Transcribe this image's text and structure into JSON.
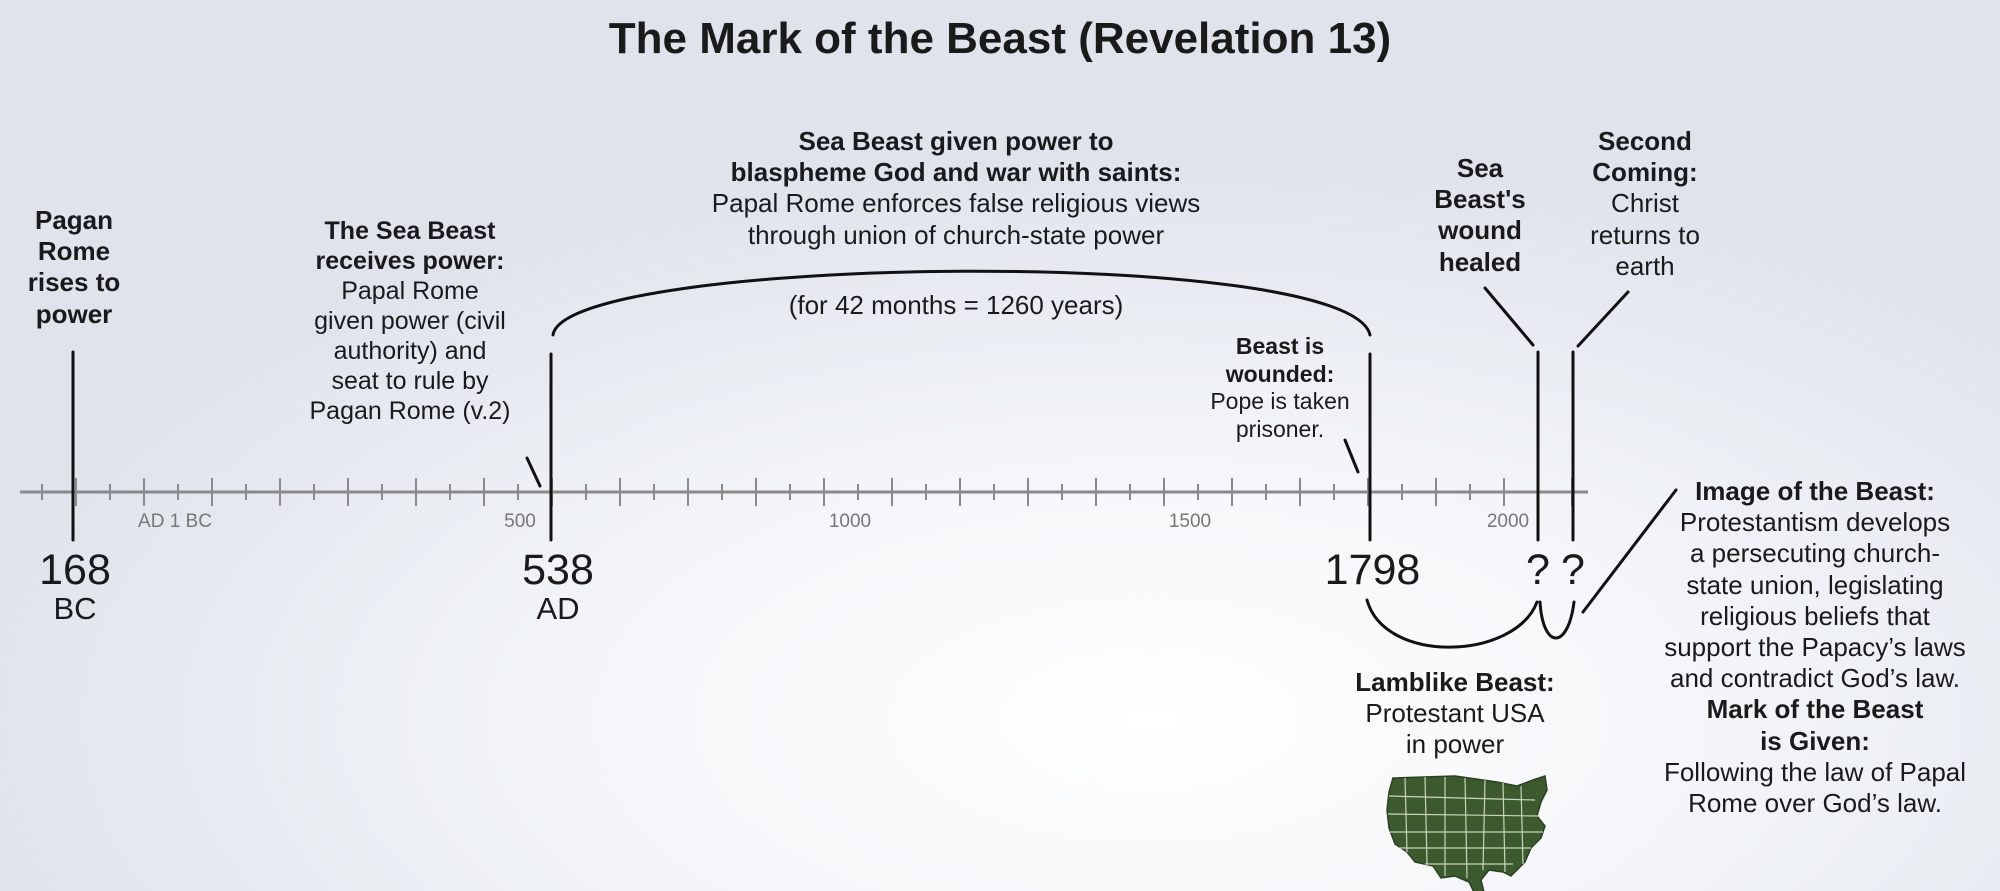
{
  "title": "The Mark of the Beast (Revelation 13)",
  "axis": {
    "tick_labels": [
      "AD 1 BC",
      "500",
      "1000",
      "1500",
      "2000"
    ]
  },
  "dates": {
    "bc168": {
      "year": "168",
      "era": "BC"
    },
    "ad538": {
      "year": "538",
      "era": "AD"
    },
    "y1798": {
      "year": "1798"
    },
    "q1": "?",
    "q2": "?"
  },
  "events": {
    "pagan_rome": {
      "heading": [
        "Pagan",
        "Rome",
        "rises to",
        "power"
      ]
    },
    "sea_beast_power": {
      "heading": [
        "The Sea Beast",
        "receives power:"
      ],
      "body": [
        "Papal Rome",
        "given power (civil",
        "authority) and",
        "seat to rule by",
        "Pagan Rome (v.2)"
      ]
    },
    "blaspheme": {
      "heading": [
        "Sea Beast given power to",
        "blaspheme God and war with saints:"
      ],
      "body": [
        "Papal Rome enforces false religious views",
        "through union of church-state power"
      ],
      "period": "(for 42 months = 1260 years)"
    },
    "wounded": {
      "heading": [
        "Beast is",
        "wounded:"
      ],
      "body": [
        "Pope is taken",
        "prisoner."
      ]
    },
    "wound_healed": {
      "heading": [
        "Sea",
        "Beast's",
        "wound",
        "healed"
      ]
    },
    "second_coming": {
      "heading": [
        "Second",
        "Coming:"
      ],
      "body": [
        "Christ",
        "returns to",
        "earth"
      ]
    },
    "lamblike": {
      "heading": [
        "Lamblike Beast:"
      ],
      "body": [
        "Protestant USA",
        "in power"
      ]
    },
    "image_beast": {
      "heading": [
        "Image of the Beast:"
      ],
      "body": [
        "Protestantism develops",
        "a persecuting church-",
        "state union, legislating",
        "religious beliefs that",
        "support the Papacy’s laws",
        "and contradict God’s law."
      ],
      "heading2": [
        "Mark of the Beast",
        "is Given:"
      ],
      "body2": [
        "Following the law of Papal",
        "Rome over God’s law."
      ]
    }
  },
  "colors": {
    "line": "#111111",
    "axis": "#8a8a8a",
    "map_fill": "#3c5a2e",
    "map_lines": "#c9d3c1"
  },
  "icons": {
    "usa_map": "usa-map-icon"
  }
}
